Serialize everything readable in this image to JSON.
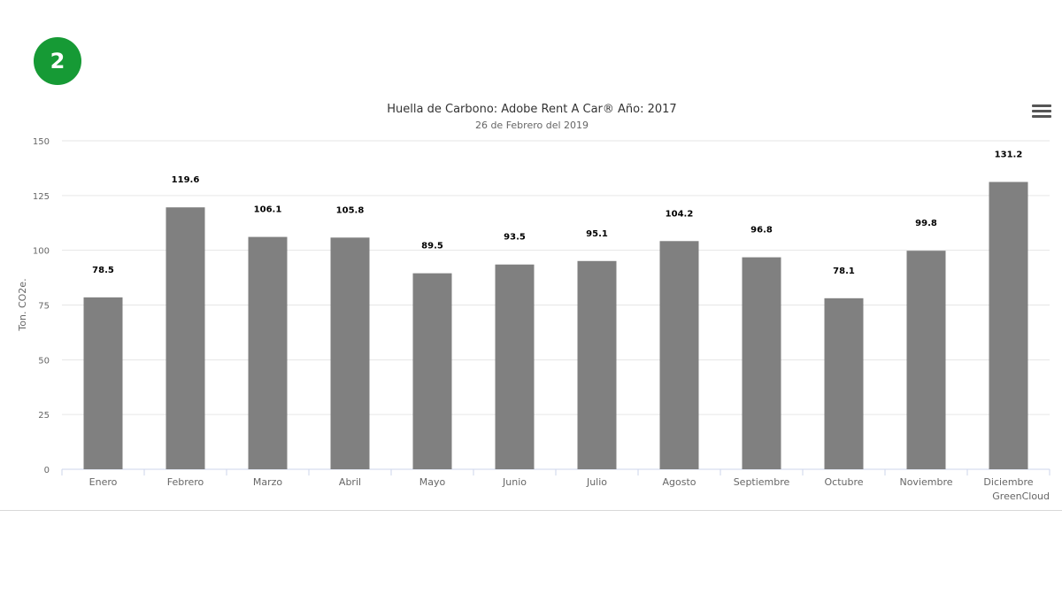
{
  "badge": {
    "label": "2",
    "color": "#169a35"
  },
  "menu": {
    "icon": "hamburger-menu-icon"
  },
  "chart_data": {
    "type": "bar",
    "title": "Huella de Carbono: Adobe Rent A Car® Año: 2017",
    "subtitle": "26 de Febrero del 2019",
    "xlabel": "",
    "ylabel": "Ton. CO2e.",
    "ylim": [
      0,
      150
    ],
    "yticks": [
      0,
      25,
      50,
      75,
      100,
      125,
      150
    ],
    "grid": true,
    "bar_color": "#808080",
    "categories": [
      "Enero",
      "Febrero",
      "Marzo",
      "Abril",
      "Mayo",
      "Junio",
      "Julio",
      "Agosto",
      "Septiembre",
      "Octubre",
      "Noviembre",
      "Diciembre"
    ],
    "values": [
      78.5,
      119.6,
      106.1,
      105.8,
      89.5,
      93.5,
      95.1,
      104.2,
      96.8,
      78.1,
      99.8,
      131.2
    ],
    "data_labels": [
      "78.5",
      "119.6",
      "106.1",
      "105.8",
      "89.5",
      "93.5",
      "95.1",
      "104.2",
      "96.8",
      "78.1",
      "99.8",
      "131.2"
    ],
    "credits": "GreenCloud"
  }
}
